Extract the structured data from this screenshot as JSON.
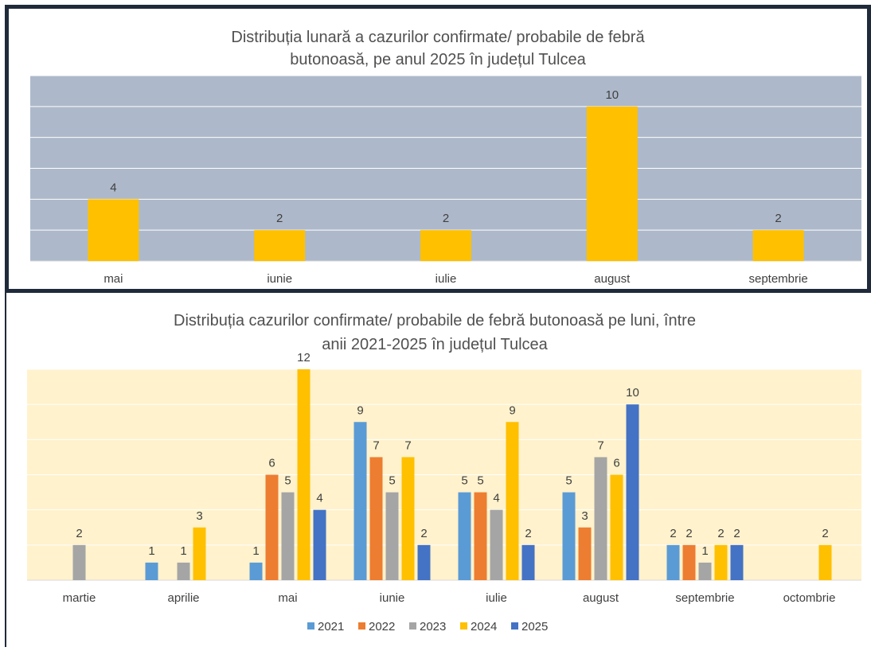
{
  "chart_data": [
    {
      "type": "bar",
      "title_lines": [
        "Distribuția lunară a cazurilor confirmate/ probabile de febră",
        "butonoasă, pe anul 2025 în județul Tulcea"
      ],
      "categories": [
        "mai",
        "iunie",
        "iulie",
        "august",
        "septembrie"
      ],
      "values": [
        4,
        2,
        2,
        10,
        2
      ],
      "ylim": [
        0,
        12
      ],
      "grid": true,
      "legend": "none",
      "colors": {
        "bar": "#FFC000",
        "plot_bg": "#ADB9CA",
        "grid": "#ffffff"
      }
    },
    {
      "type": "bar",
      "title_lines": [
        "Distribuția cazurilor confirmate/ probabile de febră butonoasă pe luni, între",
        "anii 2021-2025 în județul Tulcea"
      ],
      "categories": [
        "martie",
        "aprilie",
        "mai",
        "iunie",
        "iulie",
        "august",
        "septembrie",
        "octombrie"
      ],
      "series": [
        {
          "name": "2021",
          "color": "#5B9BD5",
          "values": [
            null,
            1,
            1,
            9,
            5,
            5,
            2,
            null
          ]
        },
        {
          "name": "2022",
          "color": "#ED7D31",
          "values": [
            null,
            null,
            6,
            7,
            5,
            3,
            2,
            null
          ]
        },
        {
          "name": "2023",
          "color": "#A5A5A5",
          "values": [
            2,
            1,
            5,
            5,
            4,
            7,
            1,
            null
          ]
        },
        {
          "name": "2024",
          "color": "#FFC000",
          "values": [
            null,
            3,
            12,
            7,
            9,
            6,
            2,
            2
          ]
        },
        {
          "name": "2025",
          "color": "#4472C4",
          "values": [
            null,
            null,
            4,
            2,
            2,
            10,
            2,
            null
          ]
        }
      ],
      "ylim": [
        0,
        12
      ],
      "grid": true,
      "legend": "bottom",
      "colors": {
        "plot_bg": "#FFF2CC",
        "grid": "#ffffff"
      }
    }
  ]
}
